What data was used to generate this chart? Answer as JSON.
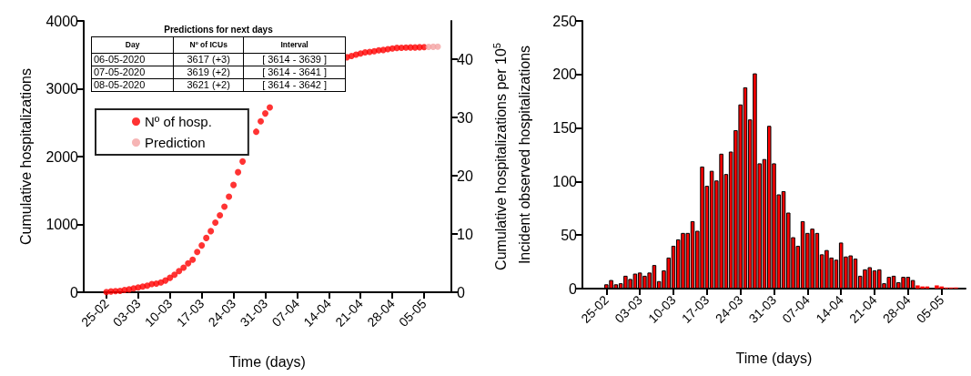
{
  "chart_data": [
    {
      "type": "scatter",
      "xlabel": "Time (days)",
      "ylabel": "Cumulative hospitalizations",
      "y2label": "Cumulative hospitalizations per 10$^{5}$",
      "xlim": [
        "2020-02-20",
        "2020-05-11"
      ],
      "xticks": [
        {
          "value": "2020-02-25",
          "label": "25-02"
        },
        {
          "value": "2020-03-03",
          "label": "03-03"
        },
        {
          "value": "2020-03-10",
          "label": "10-03"
        },
        {
          "value": "2020-03-17",
          "label": "17-03"
        },
        {
          "value": "2020-03-24",
          "label": "24-03"
        },
        {
          "value": "2020-03-31",
          "label": "31-03"
        },
        {
          "value": "2020-04-07",
          "label": "07-04"
        },
        {
          "value": "2020-04-14",
          "label": "14-04"
        },
        {
          "value": "2020-04-21",
          "label": "21-04"
        },
        {
          "value": "2020-04-28",
          "label": "28-04"
        },
        {
          "value": "2020-05-05",
          "label": "05-05"
        }
      ],
      "ylim": [
        0,
        4000
      ],
      "yticks": [
        0,
        1000,
        2000,
        3000,
        4000
      ],
      "y2lim": [
        0,
        46.6
      ],
      "y2ticks": [
        0,
        10,
        20,
        30,
        40
      ],
      "legend": "top left",
      "marker": "circle",
      "annotations": [
        "Predictions for next days",
        "Day",
        "Nº of ICUs",
        "Interval",
        "06-05-2020",
        "3617 (+3)",
        "[ 3614 - 3639 ]",
        "07-05-2020",
        "3619 (+2)",
        "[ 3614 - 3641 ]",
        "08-05-2020",
        "3621 (+2)",
        "[ 3614 - 3642 ]"
      ],
      "series": [
        {
          "name": "Nº of hosp.",
          "color": "#ff0000",
          "x": [
            "2020-02-25",
            "2020-02-26",
            "2020-02-27",
            "2020-02-28",
            "2020-02-29",
            "2020-03-01",
            "2020-03-02",
            "2020-03-03",
            "2020-03-04",
            "2020-03-05",
            "2020-03-06",
            "2020-03-07",
            "2020-03-08",
            "2020-03-09",
            "2020-03-10",
            "2020-03-11",
            "2020-03-12",
            "2020-03-13",
            "2020-03-14",
            "2020-03-15",
            "2020-03-16",
            "2020-03-17",
            "2020-03-18",
            "2020-03-19",
            "2020-03-20",
            "2020-03-21",
            "2020-03-22",
            "2020-03-23",
            "2020-03-24",
            "2020-03-25",
            "2020-03-26",
            "2020-03-27",
            "2020-03-28",
            "2020-03-29",
            "2020-03-30",
            "2020-03-31",
            "2020-04-01",
            "2020-04-02",
            "2020-04-03",
            "2020-04-04",
            "2020-04-05",
            "2020-04-06",
            "2020-04-07",
            "2020-04-08",
            "2020-04-09",
            "2020-04-10",
            "2020-04-11",
            "2020-04-12",
            "2020-04-13",
            "2020-04-14",
            "2020-04-15",
            "2020-04-16",
            "2020-04-17",
            "2020-04-18",
            "2020-04-19",
            "2020-04-20",
            "2020-04-21",
            "2020-04-22",
            "2020-04-23",
            "2020-04-24",
            "2020-04-25",
            "2020-04-26",
            "2020-04-27",
            "2020-04-28",
            "2020-04-29",
            "2020-04-30",
            "2020-05-01",
            "2020-05-02",
            "2020-05-03",
            "2020-05-04",
            "2020-05-05"
          ],
          "values": [
            4,
            12,
            16,
            21,
            33,
            42,
            56,
            71,
            83,
            98,
            120,
            127,
            144,
            173,
            213,
            259,
            311,
            363,
            426,
            480,
            594,
            690,
            800,
            901,
            1027,
            1134,
            1262,
            1410,
            1582,
            1770,
            1928,
            null,
            null,
            2367,
            2519,
            2636,
            2724,
            null,
            null,
            null,
            null,
            null,
            null,
            null,
            null,
            null,
            null,
            null,
            null,
            null,
            null,
            null,
            null,
            3465,
            3483,
            3503,
            3520,
            3538,
            3543,
            3554,
            3566,
            3572,
            3583,
            3594,
            3602,
            3605,
            3607,
            3609,
            3609,
            3612,
            3614
          ]
        },
        {
          "name": "Prediction",
          "color": "#f4a3a3",
          "x": [
            "2020-05-06",
            "2020-05-07",
            "2020-05-08"
          ],
          "values": [
            3617,
            3619,
            3621
          ]
        }
      ]
    },
    {
      "type": "bar",
      "xlabel": "Time (days)",
      "ylabel": "Incident observed hospitalizations",
      "xlim": [
        "2020-02-20",
        "2020-05-10"
      ],
      "xticks": [
        {
          "value": "2020-02-25",
          "label": "25-02"
        },
        {
          "value": "2020-03-03",
          "label": "03-03"
        },
        {
          "value": "2020-03-10",
          "label": "10-03"
        },
        {
          "value": "2020-03-17",
          "label": "17-03"
        },
        {
          "value": "2020-03-24",
          "label": "24-03"
        },
        {
          "value": "2020-03-31",
          "label": "31-03"
        },
        {
          "value": "2020-04-07",
          "label": "07-04"
        },
        {
          "value": "2020-04-14",
          "label": "14-04"
        },
        {
          "value": "2020-04-21",
          "label": "21-04"
        },
        {
          "value": "2020-04-28",
          "label": "28-04"
        },
        {
          "value": "2020-05-05",
          "label": "05-05"
        }
      ],
      "ylim": [
        0,
        250
      ],
      "yticks": [
        0,
        50,
        100,
        150,
        200,
        250
      ],
      "series": [
        {
          "color": "#ff0000",
          "x": [
            "2020-02-25",
            "2020-02-26",
            "2020-02-27",
            "2020-02-28",
            "2020-02-29",
            "2020-03-01",
            "2020-03-02",
            "2020-03-03",
            "2020-03-04",
            "2020-03-05",
            "2020-03-06",
            "2020-03-07",
            "2020-03-08",
            "2020-03-09",
            "2020-03-10",
            "2020-03-11",
            "2020-03-12",
            "2020-03-13",
            "2020-03-14",
            "2020-03-15",
            "2020-03-16",
            "2020-03-17",
            "2020-03-18",
            "2020-03-19",
            "2020-03-20",
            "2020-03-21",
            "2020-03-22",
            "2020-03-23",
            "2020-03-24",
            "2020-03-25",
            "2020-03-26",
            "2020-03-27",
            "2020-03-28",
            "2020-03-29",
            "2020-03-30",
            "2020-03-31",
            "2020-04-01",
            "2020-04-02",
            "2020-04-03",
            "2020-04-04",
            "2020-04-05",
            "2020-04-06",
            "2020-04-07",
            "2020-04-08",
            "2020-04-09",
            "2020-04-10",
            "2020-04-11",
            "2020-04-12",
            "2020-04-13",
            "2020-04-14",
            "2020-04-15",
            "2020-04-16",
            "2020-04-17",
            "2020-04-18",
            "2020-04-19",
            "2020-04-20",
            "2020-04-21",
            "2020-04-22",
            "2020-04-23",
            "2020-04-24",
            "2020-04-25",
            "2020-04-26",
            "2020-04-27",
            "2020-04-28",
            "2020-04-29",
            "2020-04-30",
            "2020-05-01",
            "2020-05-02",
            "2020-05-03",
            "2020-05-04",
            "2020-05-05",
            "2020-05-06",
            "2020-05-07",
            "2020-05-08"
          ],
          "values": [
            4,
            8,
            4,
            5,
            12,
            9,
            14,
            15,
            12,
            15,
            22,
            7,
            17,
            29,
            40,
            46,
            52,
            52,
            63,
            54,
            114,
            96,
            110,
            101,
            126,
            107,
            128,
            148,
            172,
            188,
            158,
            201,
            117,
            121,
            152,
            117,
            88,
            91,
            71,
            48,
            40,
            63,
            52,
            56,
            52,
            32,
            36,
            29,
            27,
            43,
            30,
            31,
            28,
            12,
            18,
            20,
            17,
            18,
            5,
            11,
            12,
            6,
            11,
            11,
            8,
            3,
            2,
            2,
            0,
            3,
            2,
            1,
            1,
            1
          ]
        }
      ]
    }
  ]
}
